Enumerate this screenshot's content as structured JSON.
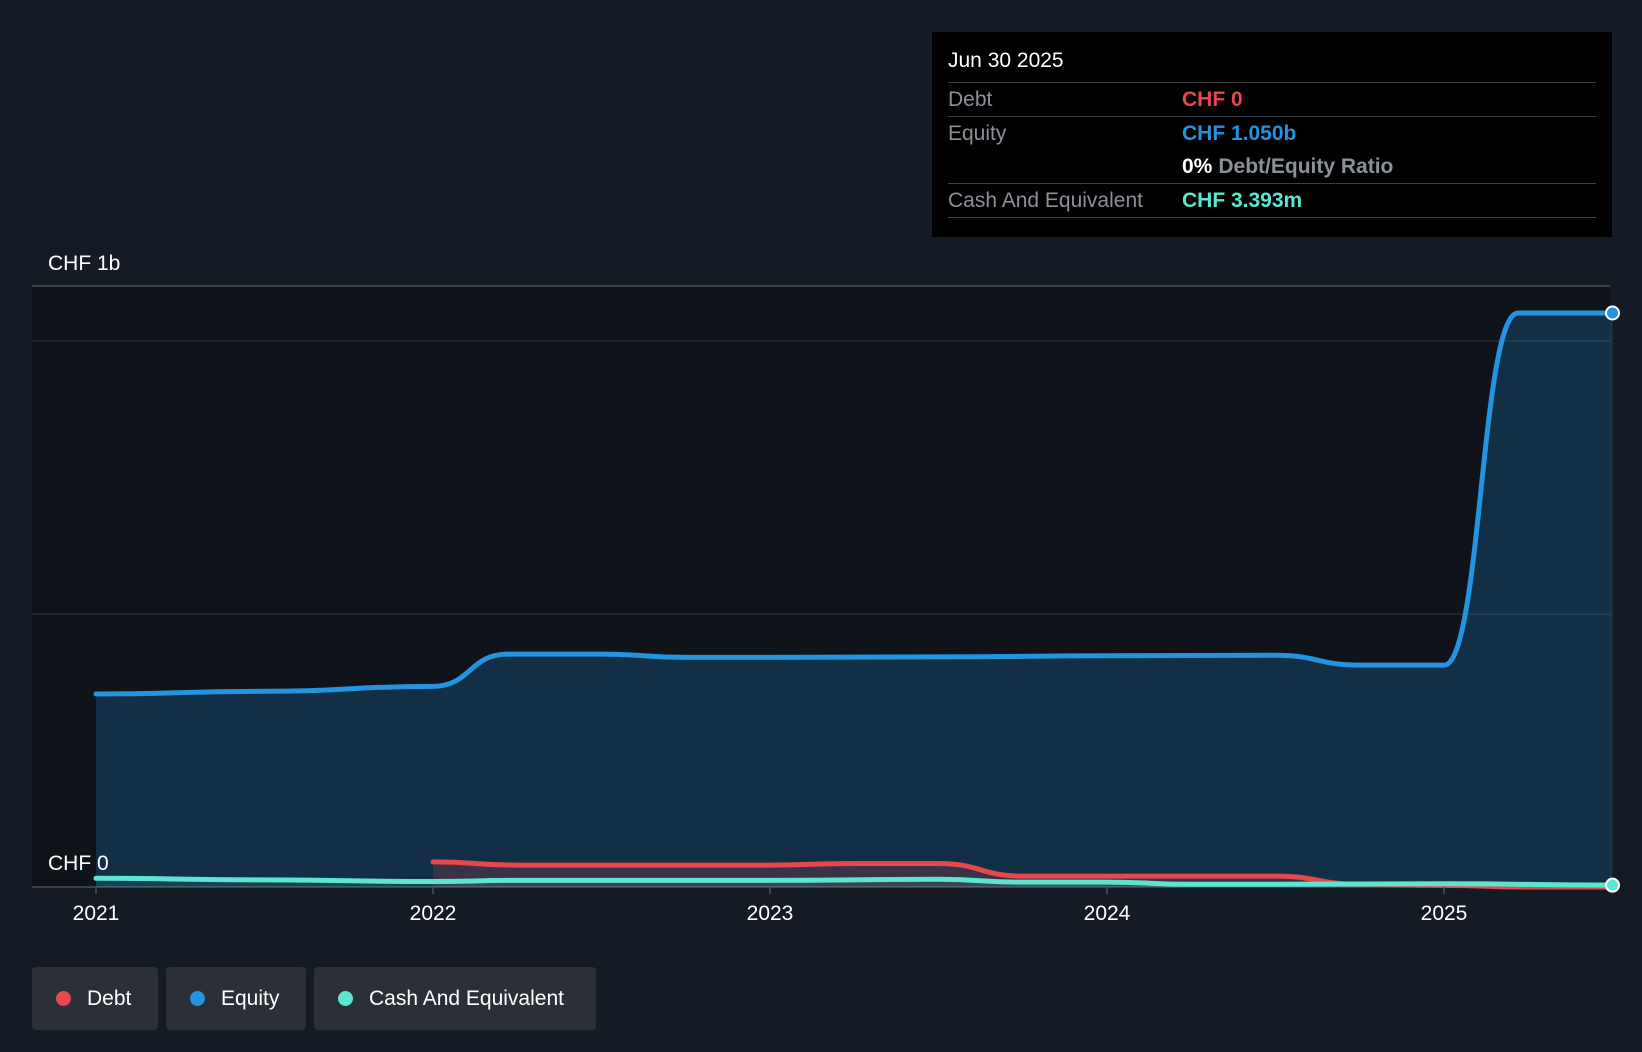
{
  "chart_data": {
    "type": "area",
    "y_axis_labels": {
      "top": "CHF 1b",
      "bottom": "CHF 0"
    },
    "ylim": [
      0,
      1.15
    ],
    "x_ticks": [
      "2021",
      "2022",
      "2023",
      "2024",
      "2025"
    ],
    "x_tick_values": [
      2021.0,
      2022.0,
      2023.0,
      2024.0,
      2025.0
    ],
    "xlim": [
      2020.81,
      2025.5
    ],
    "series": [
      {
        "name": "Debt",
        "color": "#e5484d",
        "points": [
          [
            2022.0,
            0.046
          ],
          [
            2022.25,
            0.04
          ],
          [
            2022.5,
            0.04
          ],
          [
            2023.0,
            0.04
          ],
          [
            2023.25,
            0.043
          ],
          [
            2023.5,
            0.043
          ],
          [
            2023.75,
            0.02
          ],
          [
            2024.0,
            0.02
          ],
          [
            2024.5,
            0.02
          ],
          [
            2024.75,
            0.005
          ],
          [
            2025.0,
            0.003
          ],
          [
            2025.25,
            0.0
          ],
          [
            2025.5,
            0.0
          ]
        ]
      },
      {
        "name": "Equity",
        "color": "#2394df",
        "points": [
          [
            2021.0,
            0.353
          ],
          [
            2021.5,
            0.358
          ],
          [
            2022.0,
            0.367
          ],
          [
            2022.22,
            0.426
          ],
          [
            2022.5,
            0.426
          ],
          [
            2022.75,
            0.42
          ],
          [
            2023.0,
            0.42
          ],
          [
            2023.5,
            0.421
          ],
          [
            2024.0,
            0.423
          ],
          [
            2024.5,
            0.424
          ],
          [
            2024.75,
            0.406
          ],
          [
            2025.0,
            0.406
          ],
          [
            2025.22,
            1.05
          ],
          [
            2025.5,
            1.05
          ]
        ]
      },
      {
        "name": "Cash And Equivalent",
        "color": "#5ce6d2",
        "points": [
          [
            2021.0,
            0.016
          ],
          [
            2021.5,
            0.013
          ],
          [
            2022.0,
            0.01
          ],
          [
            2022.25,
            0.012
          ],
          [
            2023.0,
            0.012
          ],
          [
            2023.5,
            0.014
          ],
          [
            2023.75,
            0.009
          ],
          [
            2024.0,
            0.009
          ],
          [
            2024.25,
            0.005
          ],
          [
            2024.5,
            0.005
          ],
          [
            2025.0,
            0.006
          ],
          [
            2025.5,
            0.003393
          ]
        ]
      }
    ],
    "grid": true,
    "legend_position": "bottom-left"
  },
  "tooltip": {
    "date": "Jun 30 2025",
    "debt_label": "Debt",
    "debt_value": "CHF 0",
    "equity_label": "Equity",
    "equity_value": "CHF 1.050b",
    "ratio_value": "0%",
    "ratio_label": "Debt/Equity Ratio",
    "cash_label": "Cash And Equivalent",
    "cash_value": "CHF 3.393m"
  },
  "legend": [
    {
      "label": "Debt",
      "color": "#e5484d"
    },
    {
      "label": "Equity",
      "color": "#2394df"
    },
    {
      "label": "Cash And Equivalent",
      "color": "#5ce6d2"
    }
  ]
}
